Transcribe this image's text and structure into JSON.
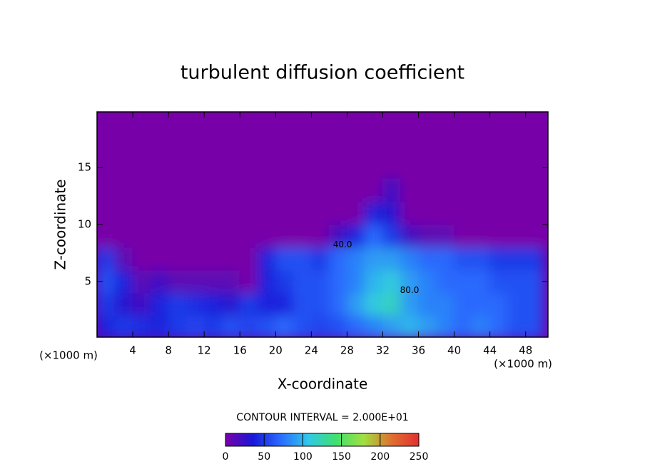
{
  "chart_data": {
    "type": "heatmap",
    "title": "turbulent diffusion coefficient",
    "x_label": "X-coordinate",
    "y_label": "Z-coordinate",
    "x_unit": "(×1000 m)",
    "y_unit": "(×1000 m)",
    "contour_interval_label": "CONTOUR INTERVAL = 2.000E+01",
    "x": [
      1,
      3,
      5,
      7,
      9,
      11,
      13,
      15,
      17,
      19,
      21,
      23,
      25,
      27,
      29,
      31,
      33,
      35,
      37,
      39,
      41,
      43,
      45,
      47,
      49
    ],
    "z": [
      1,
      3,
      5,
      7,
      9,
      11,
      13
    ],
    "values": [
      [
        40,
        50,
        45,
        40,
        50,
        55,
        50,
        60,
        55,
        60,
        70,
        60,
        55,
        60,
        70,
        80,
        90,
        100,
        90,
        80,
        70,
        80,
        70,
        60,
        60
      ],
      [
        50,
        30,
        20,
        40,
        50,
        45,
        40,
        30,
        50,
        40,
        40,
        60,
        60,
        70,
        90,
        110,
        120,
        90,
        80,
        80,
        70,
        70,
        70,
        60,
        60
      ],
      [
        60,
        40,
        10,
        20,
        10,
        10,
        10,
        10,
        0,
        40,
        50,
        60,
        60,
        70,
        80,
        100,
        110,
        90,
        80,
        70,
        70,
        70,
        60,
        60,
        60
      ],
      [
        50,
        10,
        0,
        0,
        0,
        0,
        0,
        0,
        0,
        40,
        60,
        60,
        50,
        70,
        80,
        90,
        90,
        80,
        70,
        70,
        60,
        60,
        50,
        50,
        50
      ],
      [
        0,
        0,
        0,
        0,
        0,
        0,
        0,
        0,
        0,
        0,
        0,
        0,
        0,
        20,
        40,
        70,
        50,
        20,
        10,
        10,
        0,
        0,
        0,
        0,
        0
      ],
      [
        0,
        0,
        0,
        0,
        0,
        0,
        0,
        0,
        0,
        0,
        0,
        0,
        0,
        0,
        0,
        40,
        30,
        0,
        0,
        0,
        0,
        0,
        0,
        0,
        0
      ],
      [
        0,
        0,
        0,
        0,
        0,
        0,
        0,
        0,
        0,
        0,
        0,
        0,
        0,
        0,
        0,
        0,
        20,
        0,
        0,
        0,
        0,
        0,
        0,
        0,
        0
      ]
    ],
    "xlim": [
      0,
      50.5
    ],
    "ylim": [
      0.1,
      19.9
    ],
    "xticks": [
      4,
      8,
      12,
      16,
      20,
      24,
      28,
      32,
      36,
      40,
      44,
      48
    ],
    "yticks": [
      5,
      10,
      15
    ],
    "colorbar_lim": [
      0,
      250
    ],
    "colorbar_ticks": [
      0,
      50,
      100,
      150,
      200,
      250
    ],
    "colormap": [
      "#7800a8",
      "#1818d8",
      "#2a6cff",
      "#30c8e8",
      "#40e070",
      "#a0e040",
      "#e07030",
      "#e03030"
    ],
    "annotations": [
      {
        "text": "40.0",
        "x": 27.5,
        "z": 8.2
      },
      {
        "text": "80.0",
        "x": 35,
        "z": 4.2
      }
    ]
  }
}
